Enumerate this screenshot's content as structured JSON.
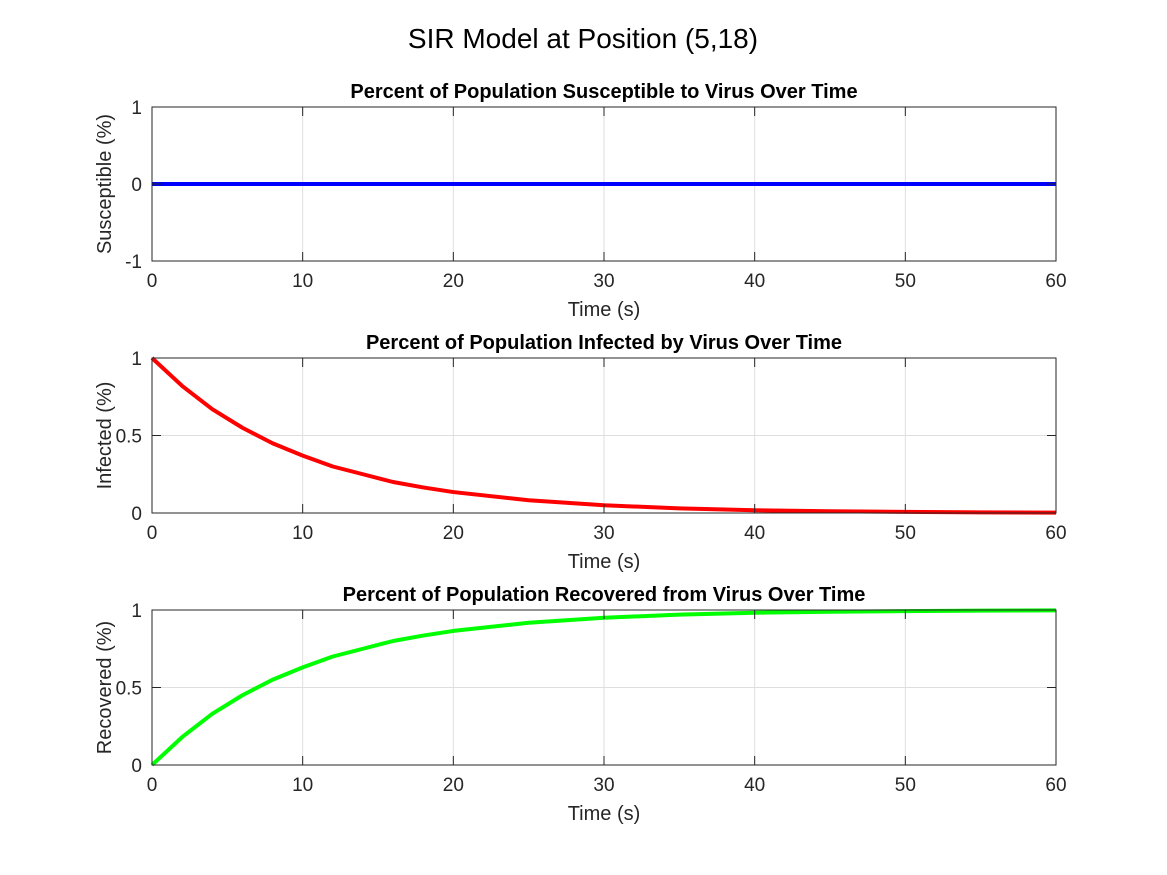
{
  "figure": {
    "title": "SIR Model at Position (5,18)"
  },
  "chart_data": [
    {
      "type": "line",
      "title": "Percent of Population Susceptible to Virus Over Time",
      "xlabel": "Time (s)",
      "ylabel": "Susceptible (%)",
      "xlim": [
        0,
        60
      ],
      "ylim": [
        -1,
        1
      ],
      "xticks": [
        0,
        10,
        20,
        30,
        40,
        50,
        60
      ],
      "yticks": [
        -1,
        0,
        1
      ],
      "grid": true,
      "series": [
        {
          "color": "#0000ff",
          "x": [
            0,
            10,
            20,
            30,
            40,
            50,
            60
          ],
          "y": [
            0,
            0,
            0,
            0,
            0,
            0,
            0
          ]
        }
      ]
    },
    {
      "type": "line",
      "title": "Percent of Population Infected by Virus Over Time",
      "xlabel": "Time (s)",
      "ylabel": "Infected (%)",
      "xlim": [
        0,
        60
      ],
      "ylim": [
        0,
        1
      ],
      "xticks": [
        0,
        10,
        20,
        30,
        40,
        50,
        60
      ],
      "yticks": [
        0,
        0.5,
        1
      ],
      "grid": true,
      "series": [
        {
          "color": "#ff0000",
          "x": [
            0,
            2,
            4,
            6,
            8,
            10,
            12,
            14,
            16,
            18,
            20,
            25,
            30,
            35,
            40,
            45,
            50,
            55,
            60
          ],
          "y": [
            1,
            0.82,
            0.67,
            0.55,
            0.45,
            0.37,
            0.3,
            0.25,
            0.2,
            0.165,
            0.135,
            0.082,
            0.05,
            0.03,
            0.018,
            0.011,
            0.007,
            0.004,
            0.0025
          ]
        }
      ]
    },
    {
      "type": "line",
      "title": "Percent of Population Recovered from Virus Over Time",
      "xlabel": "Time (s)",
      "ylabel": "Recovered (%)",
      "xlim": [
        0,
        60
      ],
      "ylim": [
        0,
        1
      ],
      "xticks": [
        0,
        10,
        20,
        30,
        40,
        50,
        60
      ],
      "yticks": [
        0,
        0.5,
        1
      ],
      "grid": true,
      "series": [
        {
          "color": "#00ff00",
          "x": [
            0,
            2,
            4,
            6,
            8,
            10,
            12,
            14,
            16,
            18,
            20,
            25,
            30,
            35,
            40,
            45,
            50,
            55,
            60
          ],
          "y": [
            0,
            0.18,
            0.33,
            0.45,
            0.55,
            0.63,
            0.7,
            0.75,
            0.8,
            0.835,
            0.865,
            0.918,
            0.95,
            0.97,
            0.982,
            0.989,
            0.993,
            0.996,
            0.9975
          ]
        }
      ]
    }
  ]
}
